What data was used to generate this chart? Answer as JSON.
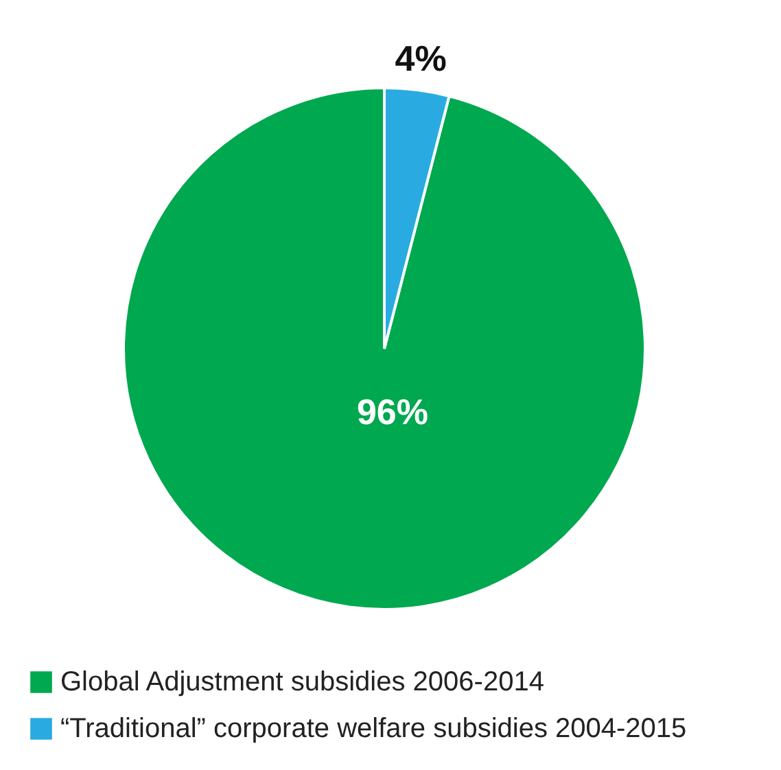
{
  "chart_data": {
    "type": "pie",
    "categories": [
      "Global Adjustment subsidies 2006-2014",
      "“Traditional” corporate welfare subsidies 2004-2015"
    ],
    "values": [
      96,
      4
    ],
    "colors": [
      "#00a84f",
      "#29abe2"
    ],
    "value_labels": [
      "96%",
      "4%"
    ],
    "legend": "bottom"
  }
}
